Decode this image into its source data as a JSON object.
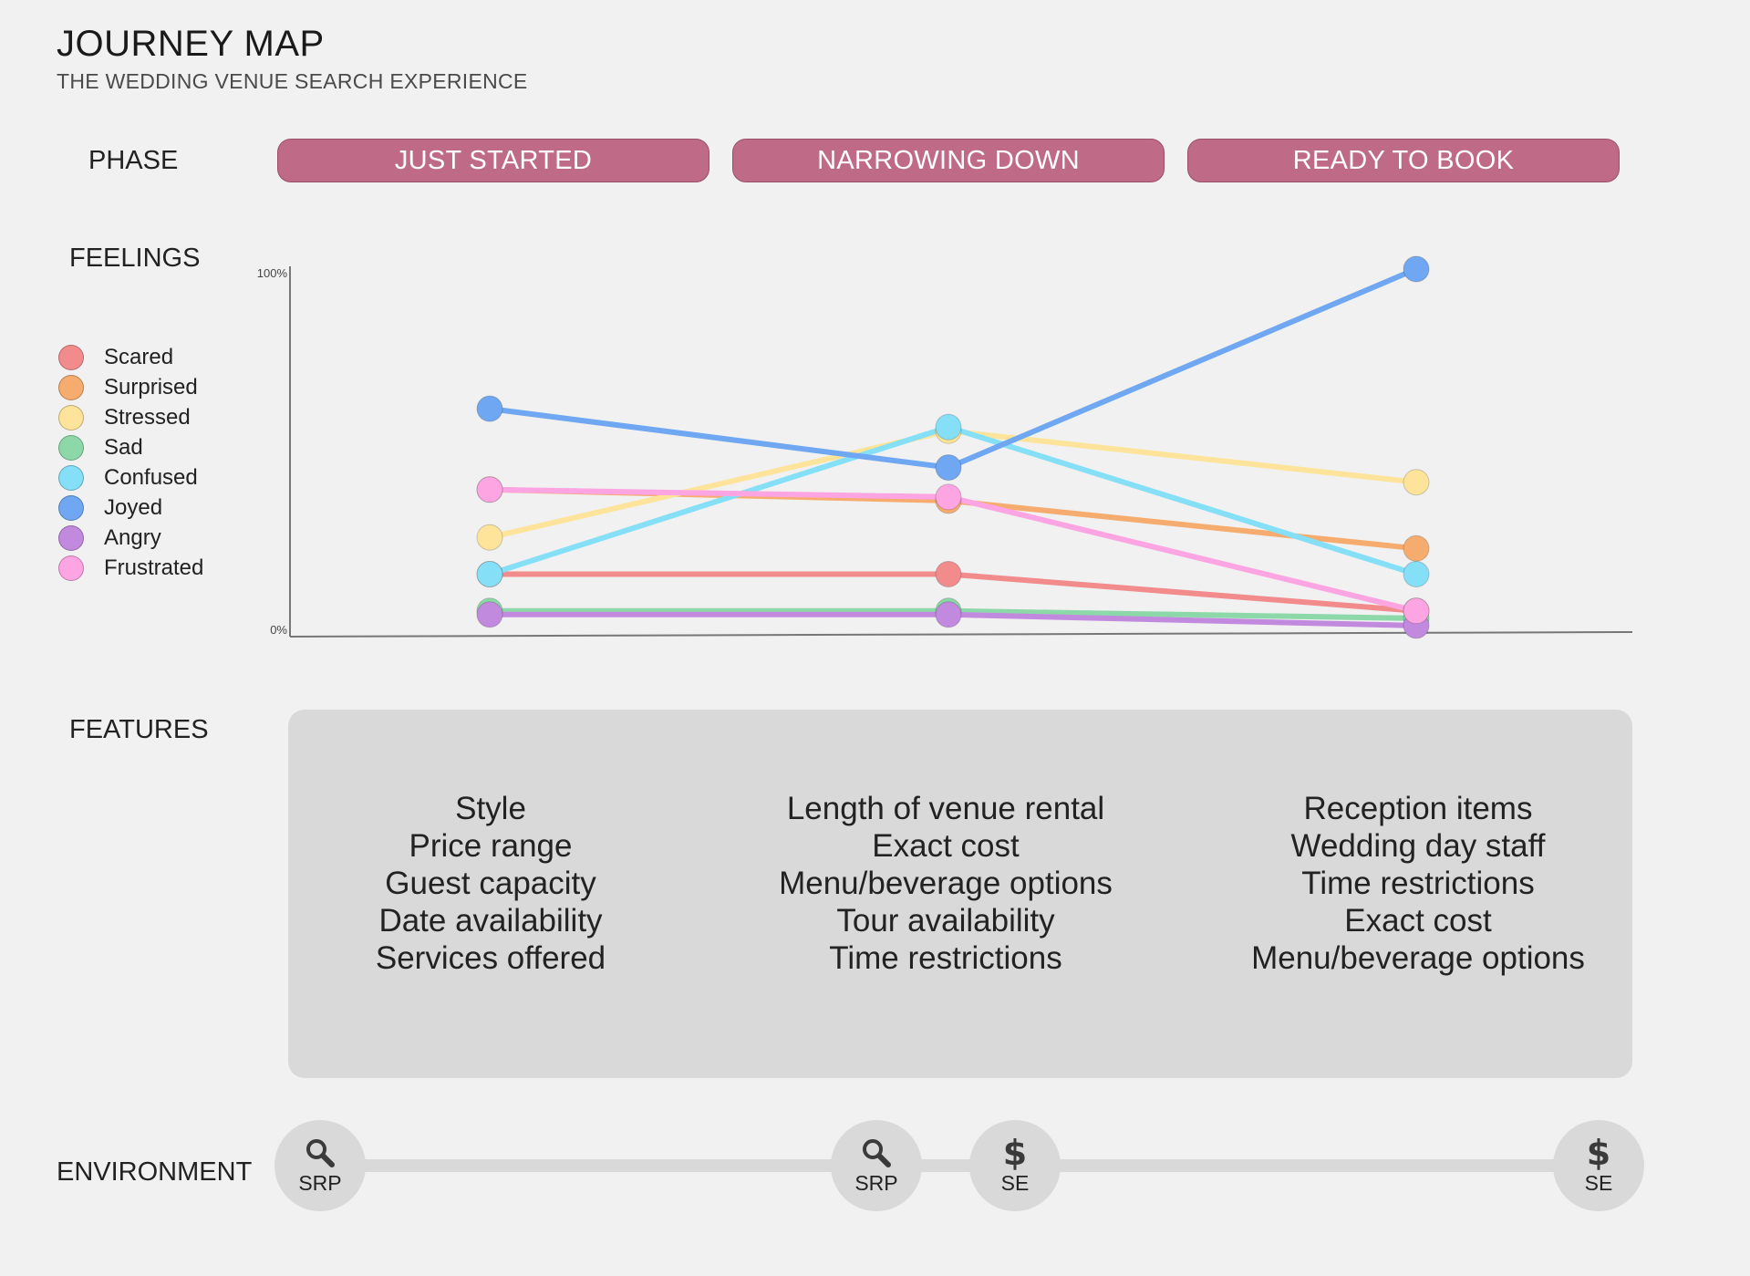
{
  "header": {
    "title": "JOURNEY MAP",
    "subtitle": "THE WEDDING VENUE SEARCH EXPERIENCE"
  },
  "labels": {
    "phase": "PHASE",
    "feelings": "FEELINGS",
    "features": "FEATURES",
    "environment": "ENVIRONMENT"
  },
  "phases": [
    {
      "label": "JUST STARTED"
    },
    {
      "label": "NARROWING DOWN"
    },
    {
      "label": "READY TO BOOK"
    }
  ],
  "legend": [
    {
      "label": "Scared",
      "color": "#f28b8b"
    },
    {
      "label": "Surprised",
      "color": "#f5ac6e"
    },
    {
      "label": "Stressed",
      "color": "#fde49a"
    },
    {
      "label": "Sad",
      "color": "#8dd8a8"
    },
    {
      "label": "Confused",
      "color": "#85dff7"
    },
    {
      "label": "Joyed",
      "color": "#6fa7f2"
    },
    {
      "label": "Angry",
      "color": "#c28ade"
    },
    {
      "label": "Frustrated",
      "color": "#fca5e2"
    }
  ],
  "chart_data": {
    "type": "line",
    "x": [
      "JUST STARTED",
      "NARROWING DOWN",
      "READY TO BOOK"
    ],
    "ylim": [
      0,
      100
    ],
    "ytick_labels": [
      "100%",
      "0%"
    ],
    "series": [
      {
        "name": "Scared",
        "color": "#f28b8b",
        "values": [
          17,
          17,
          7
        ]
      },
      {
        "name": "Surprised",
        "color": "#f5ac6e",
        "values": [
          40,
          37,
          24
        ]
      },
      {
        "name": "Stressed",
        "color": "#fde49a",
        "values": [
          27,
          56,
          42
        ]
      },
      {
        "name": "Sad",
        "color": "#8dd8a8",
        "values": [
          7,
          7,
          5
        ]
      },
      {
        "name": "Confused",
        "color": "#85dff7",
        "values": [
          17,
          57,
          17
        ]
      },
      {
        "name": "Joyed",
        "color": "#6fa7f2",
        "values": [
          62,
          46,
          100
        ]
      },
      {
        "name": "Angry",
        "color": "#c28ade",
        "values": [
          6,
          6,
          3
        ]
      },
      {
        "name": "Frustrated",
        "color": "#fca5e2",
        "values": [
          40,
          38,
          7
        ]
      }
    ]
  },
  "features": [
    [
      "Style",
      "Price range",
      "Guest capacity",
      "Date availability",
      "Services offered"
    ],
    [
      "Length of venue rental",
      "Exact cost",
      "Menu/beverage options",
      "Tour availability",
      "Time restrictions"
    ],
    [
      "Reception items",
      "Wedding day staff",
      "Time restrictions",
      "Exact cost",
      "Menu/beverage options"
    ]
  ],
  "environment": [
    {
      "icon": "search-icon",
      "label": "SRP"
    },
    {
      "icon": "search-icon",
      "label": "SRP"
    },
    {
      "icon": "dollar-icon",
      "label": "SE",
      "glyph": "$"
    },
    {
      "icon": "dollar-icon",
      "label": "SE",
      "glyph": "$"
    }
  ]
}
